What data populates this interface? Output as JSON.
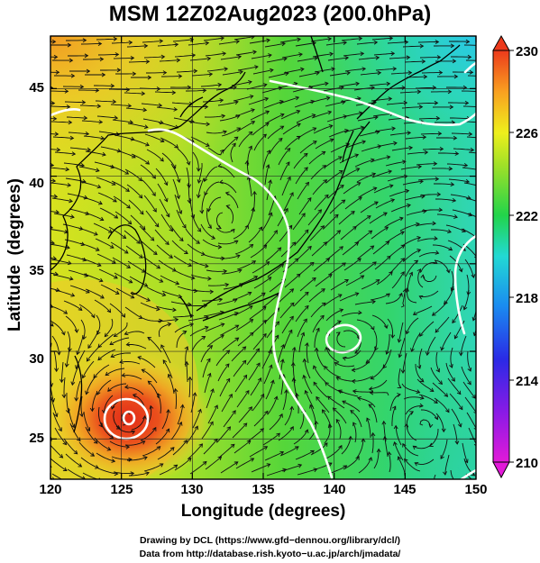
{
  "title": "MSM 12Z02Aug2023 (200.0hPa)",
  "map": {
    "xlabel": "Longitude (degrees)",
    "ylabel": "Latitude  (degrees)",
    "lon_range": [
      120,
      150
    ],
    "lat_range": [
      22.7,
      48
    ],
    "lon_ticks": [
      "120",
      "125",
      "130",
      "135",
      "140",
      "145",
      "150"
    ],
    "lat_ticks": [
      "25",
      "30",
      "35",
      "40",
      "45"
    ],
    "field": "temperature shading with wind streamlines and white isolines",
    "features": [
      "typhoon vortex near 125E 26N",
      "anticyclonic vortex near 141E 31N"
    ]
  },
  "colorbar": {
    "ticks": [
      "230",
      "226",
      "222",
      "218",
      "214",
      "210"
    ],
    "min": 210,
    "max": 230,
    "colors": [
      "#e21ad8",
      "#2a1ae6",
      "#1a8cf0",
      "#22d9d4",
      "#22d44a",
      "#9fe028",
      "#eef01c",
      "#f9a020",
      "#ec3a1c"
    ]
  },
  "credits": {
    "line1": "Drawing by DCL (https://www.gfd−dennou.org/library/dcl/)",
    "line2": "Data from http://database.rish.kyoto−u.ac.jp/arch/jmadata/"
  }
}
